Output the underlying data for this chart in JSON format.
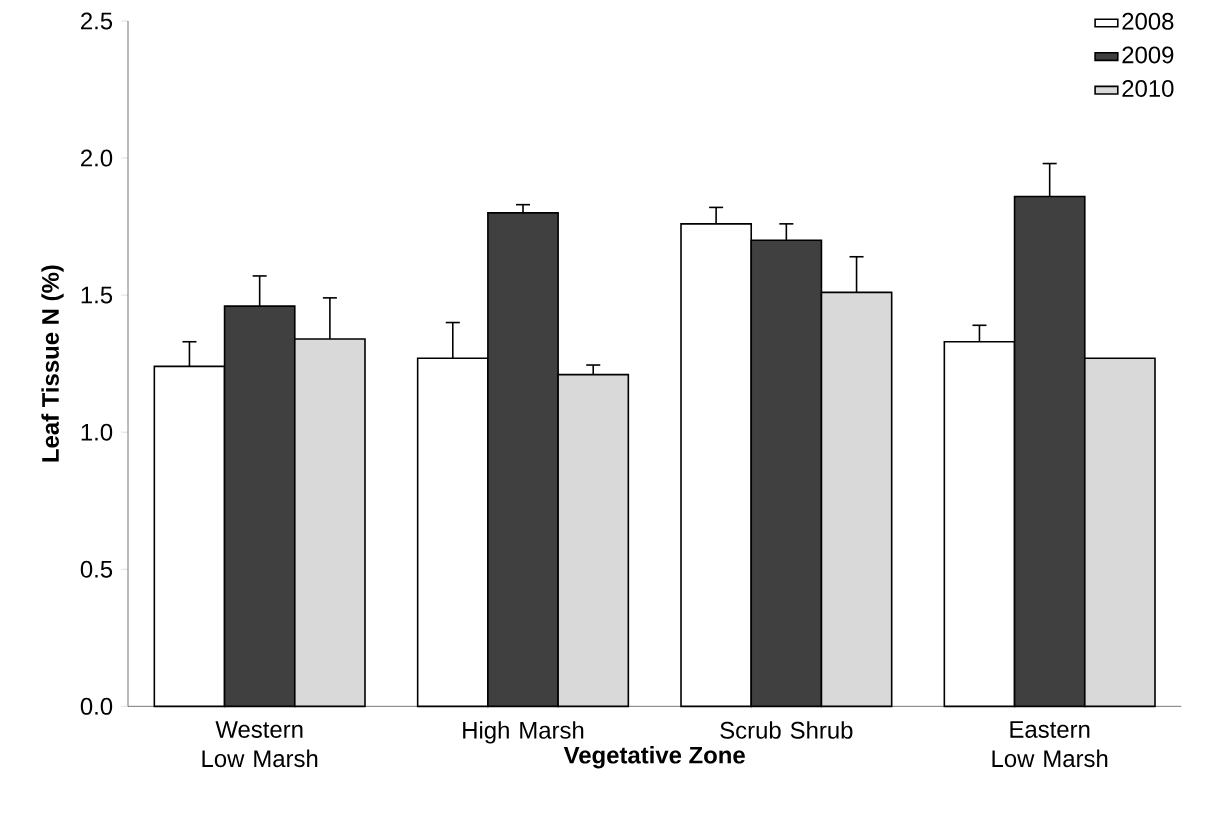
{
  "chart_data": {
    "type": "bar",
    "xlabel": "Vegetative Zone",
    "ylabel": "Leaf Tissue N (%)",
    "categories": [
      "Western Low Marsh",
      "High Marsh",
      "Scrub Shrub",
      "Eastern Low Marsh"
    ],
    "series": [
      {
        "name": "2008",
        "color": "#ffffff",
        "values": [
          1.24,
          1.27,
          1.76,
          1.33
        ],
        "errors": [
          [
            1.24,
            1.33
          ],
          [
            1.27,
            1.4
          ],
          [
            1.76,
            1.82
          ],
          [
            1.33,
            1.39
          ]
        ]
      },
      {
        "name": "2009",
        "color": "#404040",
        "values": [
          1.46,
          1.8,
          1.7,
          1.86
        ],
        "errors": [
          [
            1.46,
            1.57
          ],
          [
            1.8,
            1.83
          ],
          [
            1.7,
            1.76
          ],
          [
            1.86,
            1.98
          ]
        ]
      },
      {
        "name": "2010",
        "color": "#d9d9d9",
        "values": [
          1.34,
          1.21,
          1.51,
          1.27
        ],
        "errors": [
          [
            1.34,
            1.49
          ],
          [
            1.21,
            1.245
          ],
          [
            1.51,
            1.64
          ],
          null
        ]
      }
    ],
    "ylim": [
      0,
      2.5
    ],
    "yticks": [
      {
        "value": 0,
        "label": "0.0"
      },
      {
        "value": 0.5,
        "label": "0.5"
      },
      {
        "value": 1,
        "label": "1.0"
      },
      {
        "value": 1.5,
        "label": "1.5"
      },
      {
        "value": 2,
        "label": "2.0"
      },
      {
        "value": 2.5,
        "label": "2.5"
      }
    ],
    "grid": false,
    "legend": "top right"
  }
}
